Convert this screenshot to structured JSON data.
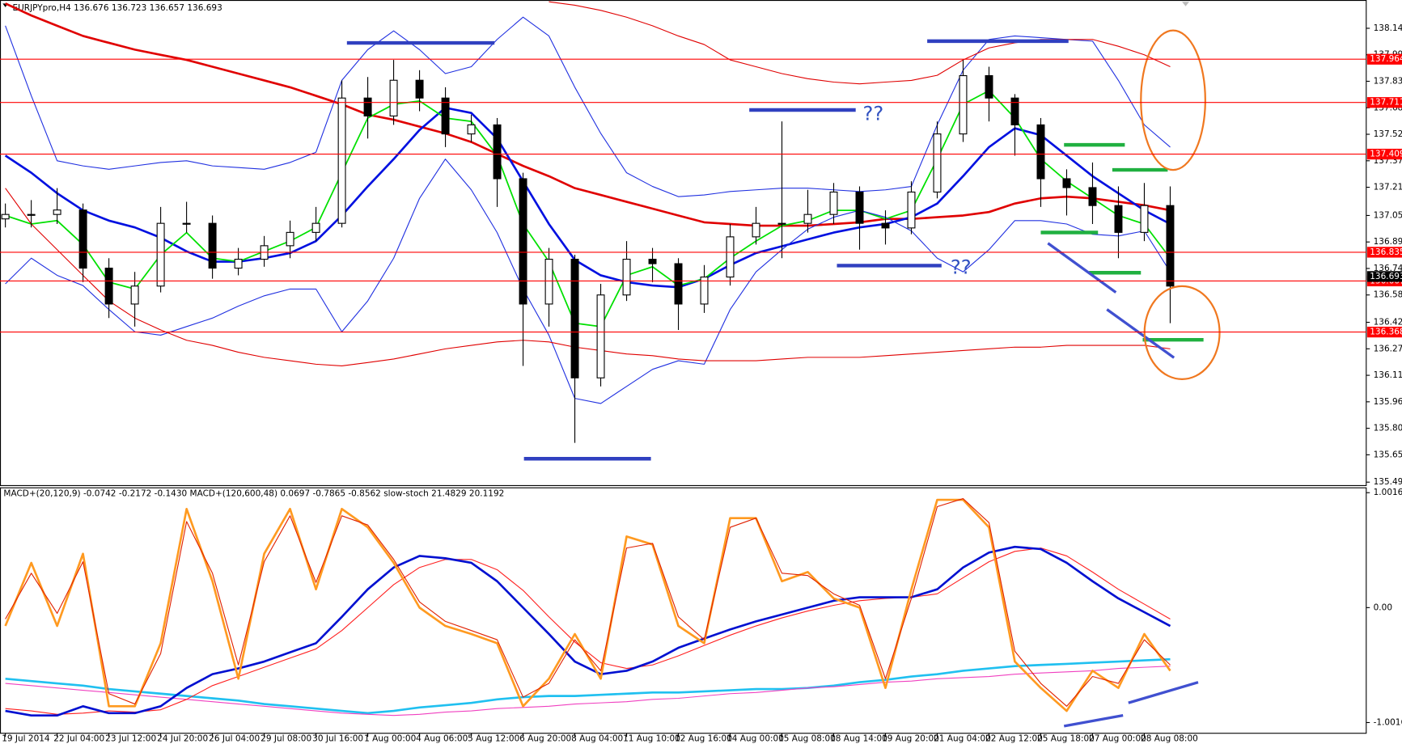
{
  "chart_data": [
    {
      "type": "candlestick",
      "title": "EURJPYpro,H4  136.676 136.723 136.657 136.693",
      "open": [
        137.03,
        137.056,
        137.056,
        137.082,
        136.742,
        136.532,
        136.637,
        137.004,
        137.004,
        136.742,
        136.794,
        136.873,
        136.951,
        137.004,
        137.737,
        137.632,
        137.841,
        137.737,
        137.527,
        137.58,
        137.265,
        136.532,
        136.794,
        136.1,
        136.585,
        136.794,
        136.768,
        136.532,
        136.69,
        136.925,
        137.004,
        137.004,
        137.056,
        137.187,
        137.004,
        136.977,
        137.187,
        137.527,
        137.868,
        137.737,
        137.58,
        137.265,
        137.213,
        137.108,
        136.951,
        137.108
      ],
      "high": [
        137.12,
        137.14,
        137.21,
        137.12,
        136.8,
        136.72,
        137.1,
        137.13,
        137.05,
        136.86,
        136.93,
        137.02,
        137.1,
        137.84,
        137.86,
        137.96,
        137.9,
        137.8,
        137.64,
        137.62,
        137.3,
        136.86,
        136.82,
        136.65,
        136.9,
        136.86,
        136.8,
        136.76,
        137.0,
        137.1,
        137.6,
        137.2,
        137.24,
        137.22,
        137.08,
        137.25,
        137.6,
        137.96,
        137.92,
        137.76,
        137.62,
        137.32,
        137.36,
        137.22,
        137.24,
        137.22
      ],
      "low": [
        136.98,
        136.98,
        137.0,
        136.66,
        136.45,
        136.4,
        136.6,
        136.95,
        136.68,
        136.7,
        136.75,
        136.8,
        136.9,
        136.98,
        137.5,
        137.58,
        137.66,
        137.45,
        137.48,
        137.1,
        136.17,
        136.4,
        135.72,
        136.05,
        136.55,
        136.66,
        136.38,
        136.48,
        136.64,
        136.88,
        136.8,
        136.95,
        137.0,
        136.85,
        136.88,
        136.94,
        137.15,
        137.48,
        137.6,
        137.4,
        137.1,
        137.05,
        137.0,
        136.8,
        136.9,
        136.42
      ],
      "close": [
        137.056,
        137.056,
        137.082,
        136.742,
        136.532,
        136.637,
        137.004,
        137.004,
        136.742,
        136.794,
        136.873,
        136.951,
        137.004,
        137.737,
        137.632,
        137.841,
        137.737,
        137.527,
        137.58,
        137.265,
        136.532,
        136.794,
        136.1,
        136.585,
        136.794,
        136.768,
        136.532,
        136.69,
        136.925,
        137.004,
        137.004,
        137.056,
        137.187,
        137.004,
        136.977,
        137.187,
        137.527,
        137.868,
        137.737,
        137.58,
        137.265,
        137.213,
        137.108,
        136.951,
        137.108,
        136.637
      ],
      "series": [
        {
          "color": "#e00000",
          "style": "bold",
          "values": [
            138.29,
            138.22,
            138.16,
            138.1,
            138.06,
            138.02,
            137.99,
            137.96,
            137.92,
            137.88,
            137.84,
            137.8,
            137.75,
            137.7,
            137.64,
            137.61,
            137.57,
            137.53,
            137.48,
            137.41,
            137.34,
            137.28,
            137.21,
            137.17,
            137.13,
            137.09,
            137.05,
            137.01,
            137.0,
            136.99,
            136.99,
            136.99,
            137.0,
            137.01,
            137.03,
            137.03,
            137.04,
            137.05,
            137.07,
            137.12,
            137.15,
            137.16,
            137.15,
            137.13,
            137.11,
            137.08
          ]
        },
        {
          "color": "#0010e0",
          "style": "bold",
          "values": [
            137.4,
            137.3,
            137.18,
            137.08,
            137.02,
            136.98,
            136.92,
            136.84,
            136.78,
            136.78,
            136.8,
            136.83,
            136.9,
            137.05,
            137.22,
            137.38,
            137.55,
            137.68,
            137.65,
            137.5,
            137.25,
            137.0,
            136.79,
            136.7,
            136.66,
            136.64,
            136.63,
            136.68,
            136.76,
            136.83,
            136.87,
            136.91,
            136.95,
            136.98,
            137.0,
            137.04,
            137.12,
            137.28,
            137.45,
            137.56,
            137.52,
            137.4,
            137.28,
            137.18,
            137.08,
            137.0
          ]
        },
        {
          "color": "#00e000",
          "style": "medium",
          "values": [
            137.05,
            137.0,
            137.02,
            136.88,
            136.66,
            136.62,
            136.82,
            136.95,
            136.8,
            136.78,
            136.84,
            136.9,
            136.98,
            137.3,
            137.62,
            137.7,
            137.72,
            137.62,
            137.6,
            137.4,
            137.0,
            136.78,
            136.42,
            136.4,
            136.7,
            136.75,
            136.64,
            136.68,
            136.8,
            136.9,
            136.99,
            137.02,
            137.08,
            137.08,
            137.03,
            137.08,
            137.38,
            137.7,
            137.78,
            137.62,
            137.38,
            137.25,
            137.15,
            137.05,
            137.0,
            136.8
          ]
        },
        {
          "color": "#2030e0",
          "style": "thin",
          "values": [
            138.16,
            137.75,
            137.37,
            137.34,
            137.32,
            137.34,
            137.36,
            137.37,
            137.34,
            137.33,
            137.32,
            137.36,
            137.42,
            137.84,
            138.02,
            138.13,
            138.02,
            137.88,
            137.92,
            138.08,
            138.21,
            138.1,
            137.8,
            137.53,
            137.3,
            137.22,
            137.16,
            137.17,
            137.19,
            137.2,
            137.21,
            137.21,
            137.2,
            137.19,
            137.2,
            137.22,
            137.58,
            137.9,
            138.08,
            138.1,
            138.09,
            138.08,
            138.07,
            137.84,
            137.58,
            137.45
          ]
        },
        {
          "color": "#2030e0",
          "style": "thin",
          "values": [
            136.65,
            136.8,
            136.7,
            136.64,
            136.5,
            136.37,
            136.35,
            136.4,
            136.45,
            136.52,
            136.58,
            136.62,
            136.62,
            136.37,
            136.55,
            136.8,
            137.15,
            137.38,
            137.2,
            136.95,
            136.62,
            136.35,
            135.98,
            135.95,
            136.05,
            136.15,
            136.2,
            136.18,
            136.5,
            136.72,
            136.85,
            136.97,
            137.04,
            137.08,
            137.04,
            136.96,
            136.8,
            136.72,
            136.85,
            137.02,
            137.02,
            137.0,
            136.94,
            136.93,
            136.96,
            136.72
          ]
        },
        {
          "color": "#e00000",
          "style": "thin",
          "values": [
            null,
            null,
            null,
            null,
            null,
            null,
            null,
            null,
            null,
            null,
            null,
            null,
            null,
            null,
            null,
            null,
            null,
            null,
            null,
            null,
            null,
            138.3,
            138.28,
            138.25,
            138.21,
            138.16,
            138.1,
            138.05,
            137.96,
            137.92,
            137.88,
            137.85,
            137.83,
            137.82,
            137.83,
            137.84,
            137.87,
            137.96,
            138.03,
            138.06,
            138.08,
            138.08,
            138.08,
            138.04,
            137.99,
            137.92
          ]
        },
        {
          "color": "#e00000",
          "style": "thin",
          "values": [
            137.21,
            137.0,
            136.85,
            136.7,
            136.55,
            136.45,
            136.38,
            136.32,
            136.29,
            136.25,
            136.22,
            136.2,
            136.18,
            136.17,
            136.19,
            136.21,
            136.24,
            136.27,
            136.29,
            136.31,
            136.32,
            136.31,
            136.28,
            136.26,
            136.24,
            136.23,
            136.21,
            136.2,
            136.2,
            136.2,
            136.21,
            136.22,
            136.22,
            136.22,
            136.23,
            136.24,
            136.25,
            136.26,
            136.27,
            136.28,
            136.28,
            136.29,
            136.29,
            136.29,
            136.29,
            136.27
          ]
        }
      ],
      "levels": [
        137.964,
        137.711,
        137.409,
        136.835,
        136.667,
        136.368
      ],
      "level_color": "#ff0000",
      "last_price": 136.693,
      "annotations": [
        "??",
        "??"
      ],
      "ylim": [
        135.47,
        138.3
      ],
      "yticks": [
        138.145,
        {
          "value": 137.99,
          "label": "137.990"
        },
        137.835,
        {
          "value": 137.68,
          "label": "137.680"
        },
        137.525,
        {
          "value": 137.37,
          "label": "137.370"
        },
        137.215,
        {
          "value": 137.05,
          "label": "137.050"
        },
        136.895,
        {
          "value": 136.74,
          "label": "136.740"
        },
        136.585,
        136.425,
        {
          "value": 136.27,
          "label": "136.270"
        },
        136.115,
        {
          "value": 135.96,
          "label": "135.960"
        },
        135.805,
        {
          "value": 135.65,
          "label": "135.650"
        },
        {
          "value": 135.49,
          "label": "135.490"
        }
      ]
    },
    {
      "type": "line",
      "title": "MACD+(20,120,9) -0.0742 -0.2172 -0.1430  MACD+(120,600,48) 0.0697 -0.7865 -0.8562  slow-stoch 21.4829 20.1192",
      "categories": [
        "19 Jul 2014",
        null,
        "22 Jul 04:00",
        null,
        "23 Jul 12:00",
        null,
        "24 Jul 20:00",
        null,
        "26 Jul 04:00",
        null,
        "29 Jul 08:00",
        null,
        "30 Jul 16:00",
        null,
        "1 Aug 00:00",
        null,
        "4 Aug 06:00",
        null,
        "5 Aug 12:00",
        null,
        "6 Aug 20:00",
        null,
        "8 Aug 04:00",
        null,
        "11 Aug 10:00",
        null,
        "12 Aug 16:00",
        null,
        "14 Aug 00:00",
        null,
        "15 Aug 08:00",
        null,
        "18 Aug 14:00",
        null,
        "19 Aug 20:00",
        null,
        "21 Aug 04:00",
        null,
        "22 Aug 12:00",
        null,
        "25 Aug 18:00",
        null,
        "27 Aug 00:00",
        null,
        "28 Aug 08:00",
        null
      ],
      "series": [
        {
          "color": "#20c0f0",
          "style": "bold",
          "values": [
            -0.62,
            -0.64,
            -0.66,
            -0.68,
            -0.71,
            -0.73,
            -0.75,
            -0.77,
            -0.79,
            -0.81,
            -0.84,
            -0.86,
            -0.88,
            -0.9,
            -0.92,
            -0.9,
            -0.87,
            -0.85,
            -0.83,
            -0.8,
            -0.78,
            -0.77,
            -0.77,
            -0.76,
            -0.75,
            -0.74,
            -0.74,
            -0.73,
            -0.72,
            -0.71,
            -0.71,
            -0.7,
            -0.68,
            -0.65,
            -0.63,
            -0.6,
            -0.58,
            -0.55,
            -0.53,
            -0.51,
            -0.5,
            -0.49,
            -0.48,
            -0.47,
            -0.46,
            -0.45
          ]
        },
        {
          "color": "#f040c0",
          "style": "thin",
          "values": [
            -0.66,
            -0.68,
            -0.7,
            -0.72,
            -0.74,
            -0.76,
            -0.78,
            -0.8,
            -0.82,
            -0.84,
            -0.86,
            -0.88,
            -0.9,
            -0.92,
            -0.93,
            -0.94,
            -0.93,
            -0.91,
            -0.9,
            -0.88,
            -0.87,
            -0.86,
            -0.84,
            -0.83,
            -0.82,
            -0.8,
            -0.79,
            -0.77,
            -0.75,
            -0.74,
            -0.72,
            -0.7,
            -0.69,
            -0.67,
            -0.65,
            -0.64,
            -0.62,
            -0.61,
            -0.6,
            -0.58,
            -0.57,
            -0.56,
            -0.55,
            -0.53,
            -0.52,
            -0.51
          ]
        },
        {
          "color": "#ff2020",
          "style": "thin",
          "values": [
            -0.88,
            -0.9,
            -0.93,
            -0.92,
            -0.9,
            -0.91,
            -0.89,
            -0.8,
            -0.68,
            -0.6,
            -0.52,
            -0.44,
            -0.36,
            -0.2,
            0.0,
            0.2,
            0.35,
            0.42,
            0.42,
            0.33,
            0.15,
            -0.08,
            -0.3,
            -0.48,
            -0.53,
            -0.5,
            -0.42,
            -0.33,
            -0.24,
            -0.16,
            -0.09,
            -0.03,
            0.02,
            0.06,
            0.08,
            0.09,
            0.12,
            0.26,
            0.4,
            0.49,
            0.52,
            0.45,
            0.31,
            0.16,
            0.03,
            -0.1
          ]
        },
        {
          "color": "#0010d0",
          "style": "bold",
          "values": [
            -0.9,
            -0.94,
            -0.94,
            -0.86,
            -0.92,
            -0.92,
            -0.86,
            -0.7,
            -0.58,
            -0.53,
            -0.47,
            -0.39,
            -0.31,
            -0.08,
            0.16,
            0.35,
            0.45,
            0.43,
            0.39,
            0.23,
            0,
            -0.23,
            -0.47,
            -0.58,
            -0.55,
            -0.47,
            -0.35,
            -0.27,
            -0.19,
            -0.12,
            -0.06,
            0,
            0.06,
            0.09,
            0.09,
            0.09,
            0.16,
            0.35,
            0.48,
            0.53,
            0.51,
            0.39,
            0.23,
            0.08,
            -0.04,
            -0.16
          ]
        },
        {
          "color": "#ff9a20",
          "style": "bold",
          "values": [
            -0.16,
            0.39,
            -0.16,
            0.47,
            -0.86,
            -0.86,
            -0.31,
            0.86,
            0.23,
            -0.62,
            0.47,
            0.86,
            0.16,
            0.86,
            0.7,
            0.39,
            0,
            -0.16,
            -0.23,
            -0.31,
            -0.86,
            -0.62,
            -0.23,
            -0.62,
            0.62,
            0.55,
            -0.16,
            -0.31,
            0.78,
            0.78,
            0.23,
            0.31,
            0.08,
            0,
            -0.7,
            0.16,
            0.94,
            0.94,
            0.7,
            -0.47,
            -0.7,
            -0.9,
            -0.55,
            -0.7,
            -0.23,
            -0.55
          ]
        },
        {
          "color": "#e02000",
          "style": "thin",
          "values": [
            -0.1,
            0.3,
            -0.05,
            0.4,
            -0.75,
            -0.84,
            -0.4,
            0.75,
            0.3,
            -0.5,
            0.4,
            0.8,
            0.22,
            0.8,
            0.72,
            0.42,
            0.05,
            -0.12,
            -0.2,
            -0.28,
            -0.78,
            -0.66,
            -0.28,
            -0.55,
            0.52,
            0.56,
            -0.08,
            -0.28,
            0.7,
            0.78,
            0.3,
            0.28,
            0.12,
            0.02,
            -0.62,
            0.08,
            0.88,
            0.95,
            0.74,
            -0.38,
            -0.66,
            -0.86,
            -0.6,
            -0.66,
            -0.28,
            -0.5
          ]
        }
      ],
      "ylim": [
        -1.095,
        1.048
      ],
      "yticks": [
        1.0016,
        {
          "value": 0,
          "label": "0.00"
        },
        -1.0016
      ]
    }
  ]
}
